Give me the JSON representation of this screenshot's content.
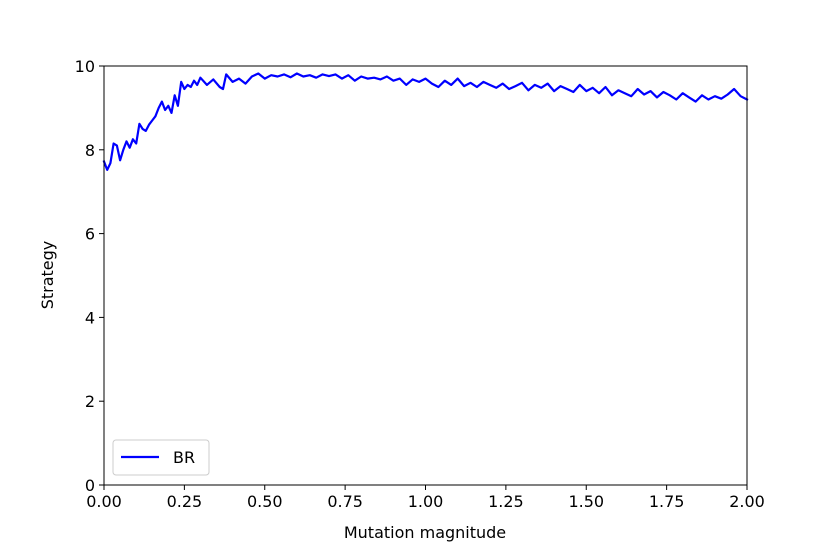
{
  "chart_data": {
    "type": "line",
    "title": "",
    "xlabel": "Mutation magnitude",
    "ylabel": "Strategy",
    "xlim": [
      0,
      2
    ],
    "ylim": [
      0,
      10
    ],
    "xticks": [
      0,
      0.25,
      0.5,
      0.75,
      1.0,
      1.25,
      1.5,
      1.75,
      2.0
    ],
    "xtick_labels": [
      "0.00",
      "0.25",
      "0.50",
      "0.75",
      "1.00",
      "1.25",
      "1.50",
      "1.75",
      "2.00"
    ],
    "yticks": [
      0,
      2,
      4,
      6,
      8,
      10
    ],
    "ytick_labels": [
      "0",
      "2",
      "4",
      "6",
      "8",
      "10"
    ],
    "grid": false,
    "legend_position": "lower-left",
    "series": [
      {
        "name": "BR",
        "color": "#0000ff",
        "x": [
          0.0,
          0.01,
          0.02,
          0.03,
          0.04,
          0.05,
          0.06,
          0.07,
          0.08,
          0.09,
          0.1,
          0.11,
          0.12,
          0.13,
          0.14,
          0.15,
          0.16,
          0.17,
          0.18,
          0.19,
          0.2,
          0.21,
          0.22,
          0.23,
          0.24,
          0.25,
          0.26,
          0.27,
          0.28,
          0.29,
          0.3,
          0.32,
          0.34,
          0.36,
          0.37,
          0.38,
          0.4,
          0.42,
          0.44,
          0.46,
          0.48,
          0.5,
          0.52,
          0.54,
          0.56,
          0.58,
          0.6,
          0.62,
          0.64,
          0.66,
          0.68,
          0.7,
          0.72,
          0.74,
          0.76,
          0.78,
          0.8,
          0.82,
          0.84,
          0.86,
          0.88,
          0.9,
          0.92,
          0.94,
          0.96,
          0.98,
          1.0,
          1.02,
          1.04,
          1.06,
          1.08,
          1.1,
          1.12,
          1.14,
          1.16,
          1.18,
          1.2,
          1.22,
          1.24,
          1.26,
          1.28,
          1.3,
          1.32,
          1.34,
          1.36,
          1.38,
          1.4,
          1.42,
          1.44,
          1.46,
          1.48,
          1.5,
          1.52,
          1.54,
          1.56,
          1.58,
          1.6,
          1.62,
          1.64,
          1.66,
          1.68,
          1.7,
          1.72,
          1.74,
          1.76,
          1.78,
          1.8,
          1.82,
          1.84,
          1.86,
          1.88,
          1.9,
          1.92,
          1.94,
          1.96,
          1.98,
          2.0
        ],
        "y": [
          7.72,
          7.52,
          7.68,
          8.15,
          8.1,
          7.75,
          8.0,
          8.2,
          8.05,
          8.25,
          8.15,
          8.62,
          8.5,
          8.45,
          8.6,
          8.7,
          8.8,
          9.0,
          9.15,
          8.95,
          9.05,
          8.88,
          9.3,
          9.05,
          9.62,
          9.45,
          9.55,
          9.5,
          9.65,
          9.55,
          9.72,
          9.55,
          9.68,
          9.5,
          9.45,
          9.8,
          9.62,
          9.7,
          9.58,
          9.75,
          9.82,
          9.7,
          9.78,
          9.75,
          9.8,
          9.73,
          9.82,
          9.75,
          9.78,
          9.72,
          9.8,
          9.76,
          9.8,
          9.7,
          9.78,
          9.65,
          9.75,
          9.7,
          9.72,
          9.68,
          9.75,
          9.65,
          9.7,
          9.55,
          9.68,
          9.62,
          9.7,
          9.58,
          9.5,
          9.65,
          9.55,
          9.7,
          9.52,
          9.6,
          9.5,
          9.62,
          9.55,
          9.48,
          9.58,
          9.45,
          9.52,
          9.6,
          9.42,
          9.55,
          9.48,
          9.58,
          9.4,
          9.52,
          9.45,
          9.38,
          9.55,
          9.4,
          9.48,
          9.35,
          9.5,
          9.3,
          9.42,
          9.35,
          9.28,
          9.45,
          9.32,
          9.4,
          9.25,
          9.38,
          9.3,
          9.2,
          9.35,
          9.25,
          9.15,
          9.3,
          9.2,
          9.28,
          9.22,
          9.32,
          9.45,
          9.28,
          9.2
        ]
      }
    ]
  }
}
